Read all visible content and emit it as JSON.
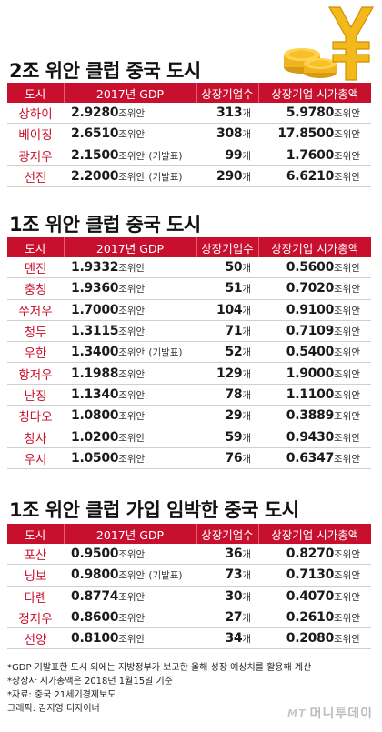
{
  "sections": [
    {
      "title": "2조 위안 클럽 중국 도시",
      "headers": [
        "도시",
        "2017년 GDP",
        "상장기업수",
        "상장기업 시가총액"
      ],
      "rows": [
        {
          "city": "상하이",
          "gdp": "2.9280",
          "gdp_unit": "조위안",
          "gdp_note": "",
          "count": "313",
          "count_unit": "개",
          "cap": "5.9780",
          "cap_unit": "조위안"
        },
        {
          "city": "베이징",
          "gdp": "2.6510",
          "gdp_unit": "조위안",
          "gdp_note": "",
          "count": "308",
          "count_unit": "개",
          "cap": "17.8500",
          "cap_unit": "조위안"
        },
        {
          "city": "광저우",
          "gdp": "2.1500",
          "gdp_unit": "조위안",
          "gdp_note": "(기발표)",
          "count": "99",
          "count_unit": "개",
          "cap": "1.7600",
          "cap_unit": "조위안"
        },
        {
          "city": "선전",
          "gdp": "2.2000",
          "gdp_unit": "조위안",
          "gdp_note": "(기발표)",
          "count": "290",
          "count_unit": "개",
          "cap": "6.6210",
          "cap_unit": "조위안"
        }
      ]
    },
    {
      "title": "1조 위안 클럽 중국 도시",
      "headers": [
        "도시",
        "2017년 GDP",
        "상장기업수",
        "상장기업 시가총액"
      ],
      "rows": [
        {
          "city": "톈진",
          "gdp": "1.9332",
          "gdp_unit": "조위안",
          "gdp_note": "",
          "count": "50",
          "count_unit": "개",
          "cap": "0.5600",
          "cap_unit": "조위안"
        },
        {
          "city": "충칭",
          "gdp": "1.9360",
          "gdp_unit": "조위안",
          "gdp_note": "",
          "count": "51",
          "count_unit": "개",
          "cap": "0.7020",
          "cap_unit": "조위안"
        },
        {
          "city": "쑤저우",
          "gdp": "1.7000",
          "gdp_unit": "조위안",
          "gdp_note": "",
          "count": "104",
          "count_unit": "개",
          "cap": "0.9100",
          "cap_unit": "조위안"
        },
        {
          "city": "청두",
          "gdp": "1.3115",
          "gdp_unit": "조위안",
          "gdp_note": "",
          "count": "71",
          "count_unit": "개",
          "cap": "0.7109",
          "cap_unit": "조위안"
        },
        {
          "city": "우한",
          "gdp": "1.3400",
          "gdp_unit": "조위안",
          "gdp_note": "(기발표)",
          "count": "52",
          "count_unit": "개",
          "cap": "0.5400",
          "cap_unit": "조위안"
        },
        {
          "city": "항저우",
          "gdp": "1.1988",
          "gdp_unit": "조위안",
          "gdp_note": "",
          "count": "129",
          "count_unit": "개",
          "cap": "1.9000",
          "cap_unit": "조위안"
        },
        {
          "city": "난징",
          "gdp": "1.1340",
          "gdp_unit": "조위안",
          "gdp_note": "",
          "count": "78",
          "count_unit": "개",
          "cap": "1.1100",
          "cap_unit": "조위안"
        },
        {
          "city": "칭다오",
          "gdp": "1.0800",
          "gdp_unit": "조위안",
          "gdp_note": "",
          "count": "29",
          "count_unit": "개",
          "cap": "0.3889",
          "cap_unit": "조위안"
        },
        {
          "city": "창사",
          "gdp": "1.0200",
          "gdp_unit": "조위안",
          "gdp_note": "",
          "count": "59",
          "count_unit": "개",
          "cap": "0.9430",
          "cap_unit": "조위안"
        },
        {
          "city": "우시",
          "gdp": "1.0500",
          "gdp_unit": "조위안",
          "gdp_note": "",
          "count": "76",
          "count_unit": "개",
          "cap": "0.6347",
          "cap_unit": "조위안"
        }
      ]
    },
    {
      "title": "1조 위안 클럽 가입 임박한 중국 도시",
      "headers": [
        "도시",
        "2017년 GDP",
        "상장기업수",
        "상장기업 시가총액"
      ],
      "rows": [
        {
          "city": "포산",
          "gdp": "0.9500",
          "gdp_unit": "조위안",
          "gdp_note": "",
          "count": "36",
          "count_unit": "개",
          "cap": "0.8270",
          "cap_unit": "조위안"
        },
        {
          "city": "닝보",
          "gdp": "0.9800",
          "gdp_unit": "조위안",
          "gdp_note": "(기발표)",
          "count": "73",
          "count_unit": "개",
          "cap": "0.7130",
          "cap_unit": "조위안"
        },
        {
          "city": "다롄",
          "gdp": "0.8774",
          "gdp_unit": "조위안",
          "gdp_note": "",
          "count": "30",
          "count_unit": "개",
          "cap": "0.4070",
          "cap_unit": "조위안"
        },
        {
          "city": "정저우",
          "gdp": "0.8600",
          "gdp_unit": "조위안",
          "gdp_note": "",
          "count": "27",
          "count_unit": "개",
          "cap": "0.2610",
          "cap_unit": "조위안"
        },
        {
          "city": "선양",
          "gdp": "0.8100",
          "gdp_unit": "조위안",
          "gdp_note": "",
          "count": "34",
          "count_unit": "개",
          "cap": "0.2080",
          "cap_unit": "조위안"
        }
      ]
    }
  ],
  "footnotes": [
    "*GDP 기발표한 도시 외에는 지방정부가 보고한 올해 성장 예상치를 활용해 계산",
    "*상장사 시가총액은 2018년 1월15일 기준",
    "*자료: 중국 21세기경제보도",
    "그래픽: 김지영 디자이너"
  ],
  "brand": {
    "logo_mark": "MT",
    "name": "머니투데이"
  },
  "decor": {
    "icon": "yuan-coins-icon",
    "accent": "#c8102e",
    "gold": "#f3b81b"
  }
}
